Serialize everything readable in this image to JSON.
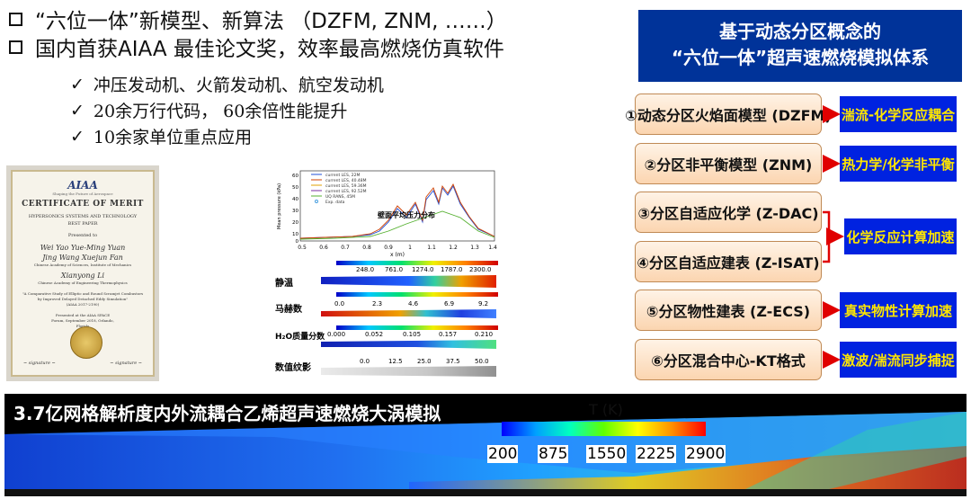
{
  "bullets": [
    "“六位一体”新模型、新算法 （DZFM, ZNM, ……）",
    "国内首获AIAA 最佳论文奖，效率最高燃烧仿真软件"
  ],
  "checks": [
    "冲压发动机、火箭发动机、航空发动机",
    "20余万行代码， 60余倍性能提升",
    "10余家单位重点应用"
  ],
  "certificate": {
    "logo": "AIAA",
    "tagline": "Shaping the Future of Aerospace",
    "title": "CERTIFICATE OF MERIT",
    "line1": "HYPERSONICS SYSTEMS AND TECHNOLOGY",
    "line2": "BEST PAPER",
    "presented": "Presented to",
    "names1": "Wei Yao    Yue-Ming Yuan",
    "names2": "Jing Wang    Xuejun Fan",
    "affil1": "Chinese Academy of Sciences, Institute of Mechanics",
    "name3": "Xianyong Li",
    "affil2": "Chinese Academy of Engineering Thermophysics",
    "paper": "\"A Comparative Study of Elliptic and Round Scramjet Combustors by Improved Delayed Detached Eddy Simulation\"",
    "paper_no": "(AIAA 2017-2190)",
    "event": "Presented at the AIAA SPACE Forum, September 2018, Orlando, Florida"
  },
  "figure": {
    "legend": [
      "current LES, 22M",
      "current LES, 40.48M",
      "current LES, 59.36M",
      "current LES, 92.52M",
      "UQ RANS, 45M",
      "Exp. data"
    ],
    "ylabel": "Mean pressure (kPa)",
    "chart_label": "壁面平均压力分布",
    "xlabel": "x (m)",
    "xticks": [
      "0.5",
      "0.6",
      "0.7",
      "0.8",
      "0.9",
      "1",
      "1.1",
      "1.2",
      "1.3",
      "1.4"
    ],
    "yticks": [
      "60",
      "50",
      "40",
      "30",
      "20",
      "10",
      "0"
    ],
    "panels": [
      {
        "label": "静温",
        "ticks": [
          "248.0",
          "761.0",
          "1274.0",
          "1787.0",
          "2300.0"
        ]
      },
      {
        "label": "马赫数",
        "ticks": [
          "0.0",
          "2.3",
          "4.6",
          "6.9",
          "9.2"
        ]
      },
      {
        "label": "H₂O质量分数",
        "ticks": [
          "0.000",
          "0.052",
          "0.105",
          "0.157",
          "0.210"
        ]
      },
      {
        "label": "数值纹影",
        "ticks": [
          "0.0",
          "12.5",
          "25.0",
          "37.5",
          "50.0"
        ]
      }
    ]
  },
  "chart": {
    "title_line1": "基于动态分区概念的",
    "title_line2": "“六位一体”超声速燃烧模拟体系",
    "models": [
      "①动态分区火焰面模型 (DZFM)",
      "②分区非平衡模型 (ZNM)",
      "③分区自适应化学 (Z-DAC)",
      "④分区自适应建表 (Z-ISAT)",
      "⑤分区物性建表 (Z-ECS)",
      "⑥分区混合中心-KT格式"
    ],
    "tags": [
      "湍流-化学反应耦合",
      "热力学/化学非平衡",
      "化学反应计算加速",
      "真实物性计算加速",
      "激波/湍流同步捕捉"
    ]
  },
  "bottom": {
    "title": "3.7亿网格解析度内外流耦合乙烯超声速燃烧大涡模拟",
    "legend_label": "T (K)",
    "legend_ticks": [
      "200",
      "875",
      "1550",
      "2225",
      "2900"
    ]
  },
  "colors": {
    "title_bg": "#003399",
    "tag_bg": "#0022e0",
    "tag_text": "#ffe600",
    "arrow": "#e00000",
    "model_border": "#c08a55"
  }
}
